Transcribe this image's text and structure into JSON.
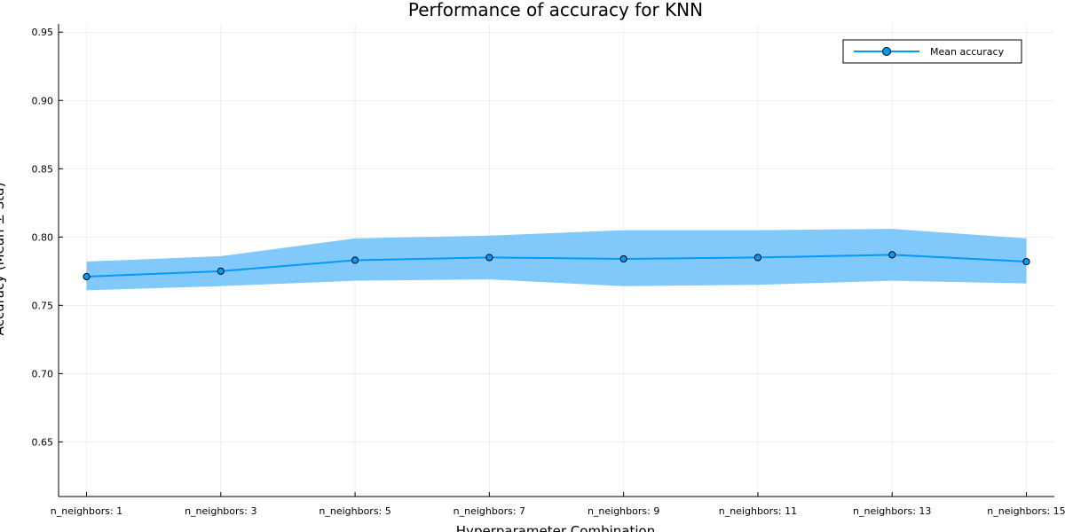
{
  "chart_data": {
    "type": "line",
    "title": "Performance of accuracy for KNN",
    "xlabel": "Hyperparameter Combination",
    "ylabel": "Accuracy (Mean ± Std)",
    "categories": [
      "n_neighbors: 1",
      "n_neighbors: 3",
      "n_neighbors: 5",
      "n_neighbors: 7",
      "n_neighbors: 9",
      "n_neighbors: 11",
      "n_neighbors: 13",
      "n_neighbors: 15"
    ],
    "series": [
      {
        "name": "Mean accuracy",
        "values": [
          0.771,
          0.775,
          0.783,
          0.785,
          0.784,
          0.785,
          0.787,
          0.782
        ],
        "band_upper": [
          0.782,
          0.786,
          0.799,
          0.801,
          0.805,
          0.805,
          0.806,
          0.799
        ],
        "band_lower": [
          0.761,
          0.764,
          0.768,
          0.769,
          0.764,
          0.765,
          0.768,
          0.766
        ]
      }
    ],
    "ylim": [
      0.61,
      0.956
    ],
    "yticks": [
      "0.65",
      "0.70",
      "0.75",
      "0.80",
      "0.85",
      "0.90",
      "0.95"
    ],
    "grid": true,
    "legend_position": "top-right",
    "colors": {
      "line": "#009af9",
      "band": "#82c9fb",
      "marker_stroke": "#000000"
    }
  }
}
